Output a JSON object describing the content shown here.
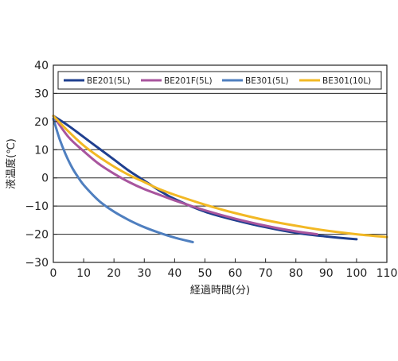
{
  "chart_data": {
    "type": "line",
    "xlabel": "経過時間(分)",
    "ylabel": "液温度(℃)",
    "xlim": [
      0,
      110
    ],
    "ylim": [
      -30,
      40
    ],
    "x_ticks": [
      0,
      10,
      20,
      30,
      40,
      50,
      60,
      70,
      80,
      90,
      100,
      110
    ],
    "y_ticks": [
      -30,
      -20,
      -10,
      0,
      10,
      20,
      30,
      40
    ],
    "x_tick_labels": [
      "0",
      "10",
      "20",
      "30",
      "40",
      "50",
      "60",
      "70",
      "80",
      "90",
      "100",
      "110"
    ],
    "y_tick_labels": [
      "−30",
      "−20",
      "−10",
      "0",
      "10",
      "20",
      "30",
      "40"
    ],
    "grid": "horizontal",
    "legend_position": "top",
    "series": [
      {
        "name": "BE201(5L)",
        "color": "#1f3f8f",
        "points": [
          [
            0,
            22
          ],
          [
            5,
            18.5
          ],
          [
            10,
            14.5
          ],
          [
            15,
            10.5
          ],
          [
            20,
            6.5
          ],
          [
            25,
            2.5
          ],
          [
            30,
            -1
          ],
          [
            35,
            -4.5
          ],
          [
            40,
            -7.5
          ],
          [
            50,
            -12
          ],
          [
            60,
            -15
          ],
          [
            70,
            -17.5
          ],
          [
            80,
            -19.5
          ],
          [
            90,
            -20.8
          ],
          [
            100,
            -21.8
          ]
        ]
      },
      {
        "name": "BE201F(5L)",
        "color": "#a8559e",
        "points": [
          [
            0,
            22
          ],
          [
            5,
            14.5
          ],
          [
            10,
            9.5
          ],
          [
            15,
            5
          ],
          [
            20,
            1.5
          ],
          [
            25,
            -1.5
          ],
          [
            30,
            -4
          ],
          [
            35,
            -6
          ],
          [
            40,
            -8
          ],
          [
            50,
            -11.5
          ],
          [
            60,
            -14.5
          ],
          [
            70,
            -17
          ],
          [
            80,
            -19
          ],
          [
            87,
            -20
          ]
        ]
      },
      {
        "name": "BE301(5L)",
        "color": "#4f7fbf",
        "points": [
          [
            0,
            21
          ],
          [
            2,
            14
          ],
          [
            4,
            8.5
          ],
          [
            6,
            4
          ],
          [
            8,
            0.5
          ],
          [
            10,
            -2.5
          ],
          [
            13,
            -6
          ],
          [
            16,
            -9
          ],
          [
            20,
            -12
          ],
          [
            25,
            -15
          ],
          [
            30,
            -17.5
          ],
          [
            35,
            -19.5
          ],
          [
            40,
            -21.2
          ],
          [
            46,
            -22.8
          ]
        ]
      },
      {
        "name": "BE301(10L)",
        "color": "#f2b824",
        "points": [
          [
            0,
            22
          ],
          [
            5,
            16.5
          ],
          [
            10,
            11.5
          ],
          [
            15,
            7.5
          ],
          [
            20,
            4
          ],
          [
            25,
            1
          ],
          [
            30,
            -1.5
          ],
          [
            35,
            -4
          ],
          [
            40,
            -6
          ],
          [
            50,
            -9.5
          ],
          [
            60,
            -12.5
          ],
          [
            70,
            -15
          ],
          [
            80,
            -17
          ],
          [
            90,
            -18.7
          ],
          [
            100,
            -20
          ],
          [
            110,
            -21
          ]
        ]
      }
    ]
  }
}
